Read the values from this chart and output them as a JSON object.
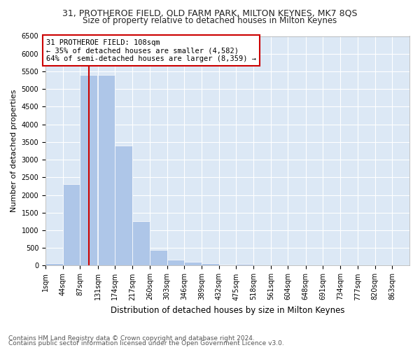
{
  "title1": "31, PROTHEROE FIELD, OLD FARM PARK, MILTON KEYNES, MK7 8QS",
  "title2": "Size of property relative to detached houses in Milton Keynes",
  "xlabel": "Distribution of detached houses by size in Milton Keynes",
  "ylabel": "Number of detached properties",
  "footer1": "Contains HM Land Registry data © Crown copyright and database right 2024.",
  "footer2": "Contains public sector information licensed under the Open Government Licence v3.0.",
  "annotation_line1": "31 PROTHEROE FIELD: 108sqm",
  "annotation_line2": "← 35% of detached houses are smaller (4,582)",
  "annotation_line3": "64% of semi-detached houses are larger (8,359) →",
  "bar_color": "#aec6e8",
  "bar_edge_color": "#ffffff",
  "vline_color": "#cc0000",
  "background_color": "#dce8f5",
  "grid_color": "#ffffff",
  "fig_bg_color": "#ffffff",
  "categories": [
    "1sqm",
    "44sqm",
    "87sqm",
    "131sqm",
    "174sqm",
    "217sqm",
    "260sqm",
    "303sqm",
    "346sqm",
    "389sqm",
    "432sqm",
    "475sqm",
    "518sqm",
    "561sqm",
    "604sqm",
    "648sqm",
    "691sqm",
    "734sqm",
    "777sqm",
    "820sqm",
    "863sqm"
  ],
  "bin_starts": [
    1,
    44,
    87,
    131,
    174,
    217,
    260,
    303,
    346,
    389,
    432,
    475,
    518,
    561,
    604,
    648,
    691,
    734,
    777,
    820,
    863
  ],
  "bar_heights": [
    75,
    2300,
    5400,
    5400,
    3400,
    1250,
    450,
    175,
    100,
    75,
    20,
    50,
    0,
    0,
    0,
    0,
    0,
    0,
    0,
    0,
    0
  ],
  "vline_x": 108,
  "ylim": [
    0,
    6500
  ],
  "yticks": [
    0,
    500,
    1000,
    1500,
    2000,
    2500,
    3000,
    3500,
    4000,
    4500,
    5000,
    5500,
    6000,
    6500
  ],
  "title1_fontsize": 9,
  "title2_fontsize": 8.5,
  "xlabel_fontsize": 8.5,
  "ylabel_fontsize": 8,
  "tick_fontsize": 7,
  "annotation_fontsize": 7.5,
  "footer_fontsize": 6.5
}
